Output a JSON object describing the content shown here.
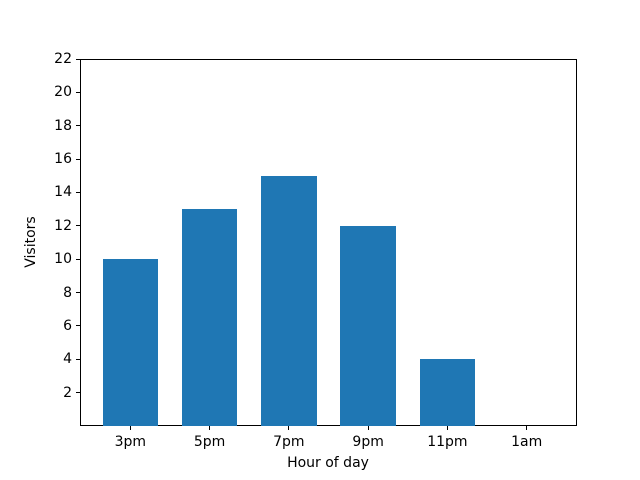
{
  "figure": {
    "background": "#ffffff",
    "spine_color": "#000000",
    "text_color": "#000000"
  },
  "chart_data": {
    "type": "bar",
    "categories": [
      "3pm",
      "5pm",
      "7pm",
      "9pm",
      "11pm",
      "1am"
    ],
    "values": [
      10,
      13,
      15,
      12,
      4,
      0
    ],
    "title": "",
    "xlabel": "Hour of day",
    "ylabel": "Visitors",
    "ylim": [
      0,
      22
    ],
    "yticks": [
      2,
      4,
      6,
      8,
      10,
      12,
      14,
      16,
      18,
      20,
      22
    ],
    "xlim": [
      -0.635,
      5.635
    ],
    "bar_width": 0.7,
    "bar_color": "#1f77b4",
    "grid": false,
    "legend_position": "none"
  }
}
